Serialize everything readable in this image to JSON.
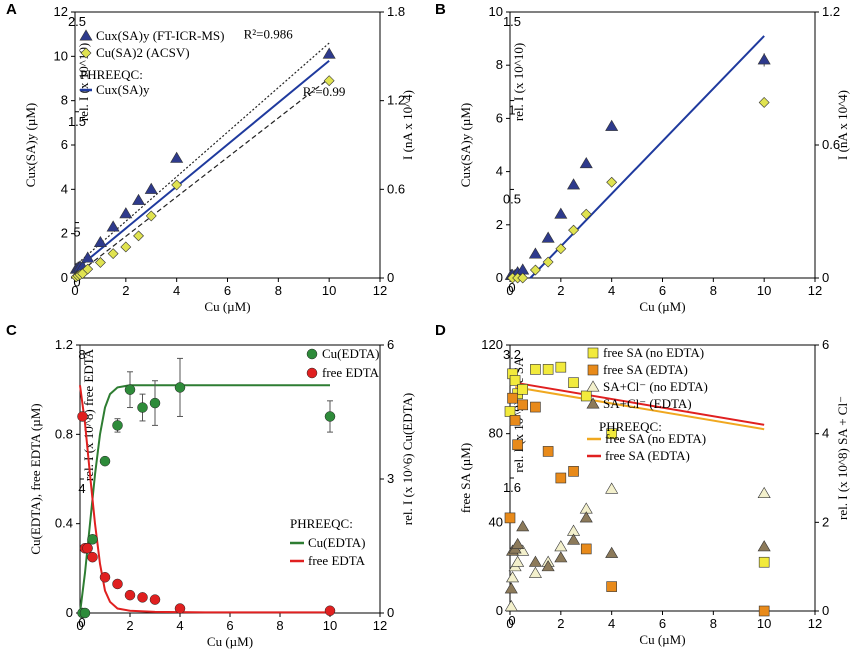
{
  "figure": {
    "panels": [
      "A",
      "B",
      "C",
      "D"
    ]
  },
  "chart_data": [
    {
      "panel": "A",
      "type": "scatter",
      "xlabel": "Cu (µM)",
      "ylabel": "Cux(SA)y (µM)",
      "y2label_inner": "rel. I (x 10^10)",
      "y2label_right": "I (nA x 10^4)",
      "xlim": [
        0,
        12
      ],
      "xticks": [
        "0",
        "2",
        "4",
        "6",
        "8",
        "10",
        "12"
      ],
      "ylim": [
        0,
        12
      ],
      "yticks": [
        "0",
        "2",
        "4",
        "6",
        "8",
        "10",
        "12"
      ],
      "inner_ticks": {
        "labels": [
          "0",
          "5",
          "1.5",
          "2.5"
        ],
        "values": [
          0.25,
          2.5,
          7.5,
          12
        ]
      },
      "right_ticks": {
        "labels": [
          "0",
          "0.6",
          "1.2",
          "1.8"
        ],
        "values": [
          0,
          4,
          8,
          12
        ]
      },
      "series": [
        {
          "name": "Cux(SA)y (FT-ICR-MS)",
          "marker": "triangle",
          "color": "#2e3a8c",
          "x": [
            0.05,
            0.12,
            0.2,
            0.3,
            0.5,
            1.0,
            1.5,
            2.0,
            2.5,
            3.0,
            4.0,
            10.0
          ],
          "y": [
            0.4,
            0.45,
            0.5,
            0.5,
            0.9,
            1.6,
            2.3,
            2.9,
            3.5,
            4.0,
            5.4,
            10.1
          ]
        },
        {
          "name": "Cu(SA)2 (ACSV)",
          "marker": "diamond",
          "color": "#e0e350",
          "x": [
            0.05,
            0.12,
            0.2,
            0.3,
            0.5,
            1.0,
            1.5,
            2.0,
            2.5,
            3.0,
            4.0,
            10.0
          ],
          "y": [
            0.05,
            0.1,
            0.15,
            0.2,
            0.4,
            0.7,
            1.1,
            1.4,
            1.9,
            2.8,
            4.2,
            8.9
          ]
        }
      ],
      "lines": [
        {
          "name": "PHREEQC: Cux(SA)y",
          "style": "solid",
          "color": "#1f3a9e",
          "x": [
            0,
            10
          ],
          "y": [
            0.35,
            9.8
          ]
        },
        {
          "name": "fit FT-ICR-MS",
          "style": "dotted",
          "color": "#222222",
          "x": [
            0,
            10
          ],
          "y": [
            0.55,
            10.6
          ]
        },
        {
          "name": "fit ACSV",
          "style": "dashed",
          "color": "#222222",
          "x": [
            0,
            10
          ],
          "y": [
            0.1,
            9.0
          ]
        }
      ],
      "annotations": [
        {
          "text": "R²=0.986",
          "x": 7.6,
          "y": 10.8
        },
        {
          "text": "R²=0.99",
          "x": 9.8,
          "y": 8.2
        }
      ],
      "legend": {
        "entries": [
          "Cux(SA)y (FT-ICR-MS)",
          "Cu(SA)2 (ACSV)"
        ],
        "model_title": "PHREEQC:",
        "model_entry": "Cux(SA)y"
      }
    },
    {
      "panel": "B",
      "type": "scatter",
      "xlabel": "Cu (µM)",
      "ylabel": "Cux(SA)y (µM)",
      "y2label_inner": "rel. I (x 10^10)",
      "y2label_right": "I (nA x 10^4)",
      "xlim": [
        0,
        12
      ],
      "xticks": [
        "0",
        "2",
        "4",
        "6",
        "8",
        "10",
        "12"
      ],
      "ylim": [
        0,
        10
      ],
      "yticks": [
        "0",
        "2",
        "4",
        "6",
        "8",
        "10"
      ],
      "inner_ticks": {
        "labels": [
          "0",
          "0.5",
          "1",
          "1.5"
        ],
        "values": [
          0,
          3.33,
          6.67,
          10
        ]
      },
      "right_ticks": {
        "labels": [
          "0",
          "0.6",
          "1.2"
        ],
        "values": [
          0,
          5,
          10
        ]
      },
      "series": [
        {
          "name": "Cux(SA)y (FT-ICR-MS)",
          "marker": "triangle",
          "color": "#2e3a8c",
          "x": [
            0.05,
            0.1,
            0.2,
            0.3,
            0.5,
            1.0,
            1.5,
            2.0,
            2.5,
            3.0,
            4.0,
            10.0
          ],
          "y": [
            0.1,
            0.1,
            0.1,
            0.2,
            0.3,
            0.9,
            1.5,
            2.4,
            3.5,
            4.3,
            5.7,
            8.2
          ]
        },
        {
          "name": "Cu(SA)2 (ACSV)",
          "marker": "diamond",
          "color": "#e0e350",
          "x": [
            0.1,
            0.3,
            0.5,
            1.0,
            1.5,
            2.0,
            2.5,
            3.0,
            4.0,
            10.0
          ],
          "y": [
            0.0,
            0.0,
            0.0,
            0.3,
            0.6,
            1.1,
            1.8,
            2.4,
            3.6,
            6.6
          ]
        }
      ],
      "lines": [
        {
          "name": "PHREEQC: Cux(SA)y",
          "style": "solid",
          "color": "#1f3a9e",
          "x": [
            0.8,
            10
          ],
          "y": [
            0,
            9.1
          ]
        }
      ],
      "error_bars": [
        {
          "x": 10.0,
          "y": 8.2,
          "err": 0.25
        }
      ]
    },
    {
      "panel": "C",
      "type": "scatter",
      "xlabel": "Cu (µM)",
      "ylabel": "Cu(EDTA), free EDTA (µM)",
      "y2label_inner": "rel. I (x 10^8) free EDTA",
      "y2label_right": "rel. I (x 10^6) Cu(EDTA)",
      "xlim": [
        0,
        12
      ],
      "xticks": [
        "0",
        "2",
        "4",
        "6",
        "8",
        "10",
        "12"
      ],
      "ylim": [
        0,
        1.2
      ],
      "yticks": [
        "0",
        "0.4",
        "0.8",
        "1.2"
      ],
      "inner_ticks": {
        "labels": [
          "0",
          "4",
          "8"
        ],
        "values": [
          0,
          0.6,
          1.2
        ]
      },
      "right_ticks": {
        "labels": [
          "0",
          "3",
          "6"
        ],
        "values": [
          0,
          0.6,
          1.2
        ]
      },
      "series": [
        {
          "name": "Cu(EDTA)",
          "marker": "circle",
          "color": "#2e8b3a",
          "x": [
            0.1,
            0.2,
            0.3,
            0.5,
            1.0,
            1.5,
            2.0,
            2.5,
            3.0,
            4.0,
            10.0
          ],
          "y": [
            0.0,
            0.0,
            0.29,
            0.33,
            0.68,
            0.84,
            1.0,
            0.92,
            0.94,
            1.01,
            0.88
          ],
          "err": [
            0,
            0,
            0,
            0,
            0,
            0.03,
            0.08,
            0.06,
            0.1,
            0.13,
            0.07
          ]
        },
        {
          "name": "free EDTA",
          "marker": "circle",
          "color": "#e02020",
          "x": [
            0.1,
            0.2,
            0.3,
            0.5,
            1.0,
            1.5,
            2.0,
            2.5,
            3.0,
            4.0,
            10.0
          ],
          "y": [
            0.88,
            0.29,
            0.29,
            0.25,
            0.16,
            0.13,
            0.08,
            0.07,
            0.06,
            0.02,
            0.01
          ]
        }
      ],
      "lines": [
        {
          "name": "Cu(EDTA)",
          "style": "solid",
          "color": "#2e7d32",
          "x": [
            0,
            0.2,
            0.4,
            0.6,
            0.8,
            1.0,
            1.2,
            1.5,
            2.0,
            3.0,
            5.0,
            10.0
          ],
          "y": [
            0.0,
            0.18,
            0.4,
            0.62,
            0.8,
            0.92,
            0.98,
            1.01,
            1.02,
            1.02,
            1.02,
            1.02
          ]
        },
        {
          "name": "free EDTA",
          "style": "solid",
          "color": "#e02020",
          "x": [
            0,
            0.2,
            0.4,
            0.6,
            0.8,
            1.0,
            1.2,
            1.5,
            2.0,
            3.0,
            5.0,
            10.0
          ],
          "y": [
            1.02,
            0.85,
            0.62,
            0.4,
            0.22,
            0.1,
            0.05,
            0.02,
            0.01,
            0.005,
            0.003,
            0.003
          ]
        }
      ],
      "legend": {
        "entries": [
          "Cu(EDTA)",
          "free EDTA"
        ],
        "model_title": "PHREEQC:",
        "model_entries": [
          "Cu(EDTA)",
          "free EDTA"
        ]
      }
    },
    {
      "panel": "D",
      "type": "scatter",
      "xlabel": "Cu (µM)",
      "ylabel": "free SA (µM)",
      "y2label_inner": "rel. I (x 10^9) free SA",
      "y2label_right": "rel. I (x 10^8) SA + Cl⁻",
      "xlim": [
        0,
        12
      ],
      "xticks": [
        "0",
        "2",
        "4",
        "6",
        "8",
        "10",
        "12"
      ],
      "ylim": [
        0,
        120
      ],
      "yticks": [
        "0",
        "40",
        "80",
        "120"
      ],
      "inner_ticks": {
        "labels": [
          "0",
          "1.6",
          "3.2"
        ],
        "values": [
          0,
          60,
          120
        ]
      },
      "right_ticks": {
        "labels": [
          "0",
          "2",
          "4",
          "6"
        ],
        "values": [
          0,
          40,
          80,
          120
        ]
      },
      "series": [
        {
          "name": "free SA (no EDTA)",
          "marker": "square",
          "color": "#f2ea3c",
          "x": [
            0,
            0.1,
            0.2,
            0.3,
            0.5,
            1.0,
            1.5,
            2.0,
            2.5,
            3.0,
            4.0,
            10.0
          ],
          "y": [
            90,
            107,
            104,
            98,
            100,
            109,
            109,
            110,
            103,
            97,
            80,
            22
          ]
        },
        {
          "name": "free SA (EDTA)",
          "marker": "square",
          "color": "#e88a1a",
          "x": [
            0,
            0.1,
            0.2,
            0.3,
            0.5,
            1.0,
            1.5,
            2.0,
            2.5,
            3.0,
            4.0,
            10.0
          ],
          "y": [
            42,
            96,
            86,
            75,
            93,
            92,
            72,
            60,
            63,
            28,
            11,
            0
          ]
        },
        {
          "name": "SA+Cl⁻ (no EDTA)",
          "marker": "triangle",
          "color": "#f3f0cc",
          "x": [
            0.05,
            0.1,
            0.2,
            0.3,
            0.5,
            1.0,
            1.5,
            2.0,
            2.5,
            3.0,
            4.0,
            10.0
          ],
          "y": [
            2,
            15,
            20,
            22,
            27,
            17,
            22,
            29,
            36,
            46,
            55,
            53
          ]
        },
        {
          "name": "SA+Cl⁻ (EDTA)",
          "marker": "triangle",
          "color": "#8c7a5a",
          "x": [
            0.05,
            0.1,
            0.2,
            0.3,
            0.5,
            1.0,
            1.5,
            2.0,
            2.5,
            3.0,
            4.0,
            10.0
          ],
          "y": [
            10,
            27,
            28,
            30,
            38,
            22,
            20,
            24,
            32,
            42,
            26,
            29
          ]
        }
      ],
      "lines": [
        {
          "name": "free SA (no EDTA)",
          "style": "solid",
          "color": "#f0a820",
          "x": [
            0.2,
            10
          ],
          "y": [
            101,
            82
          ]
        },
        {
          "name": "free SA (EDTA)",
          "style": "solid",
          "color": "#e02020",
          "x": [
            0.2,
            10
          ],
          "y": [
            103,
            84
          ]
        }
      ],
      "legend": {
        "entries": [
          "free SA (no EDTA)",
          "free SA (EDTA)",
          "SA+Cl⁻ (no EDTA)",
          "SA+Cl⁻ (EDTA)"
        ],
        "model_title": "PHREEQC:",
        "model_entries": [
          "free SA (no EDTA)",
          "free SA (EDTA)"
        ]
      }
    }
  ]
}
